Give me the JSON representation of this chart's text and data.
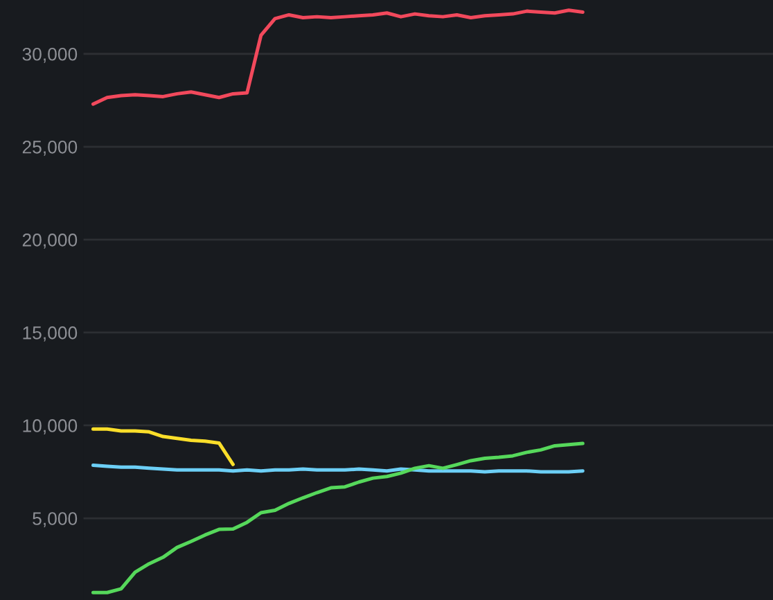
{
  "chart_data": {
    "type": "line",
    "categories": [
      null,
      null,
      null,
      null,
      null,
      null,
      null,
      null,
      null,
      null,
      null,
      null,
      null,
      null,
      null,
      null,
      null,
      null,
      null,
      null,
      null,
      null,
      null,
      null,
      null,
      null,
      null,
      null,
      null,
      null,
      null,
      null,
      null,
      null,
      null,
      null
    ],
    "series": [
      {
        "color": "#f2495c",
        "values": [
          27300,
          27650,
          27750,
          27800,
          27750,
          27700,
          27850,
          27950,
          27800,
          27650,
          27850,
          27900,
          31000,
          31900,
          32100,
          31950,
          32000,
          31950,
          32000,
          32050,
          32100,
          32200,
          32000,
          32150,
          32050,
          32000,
          32100,
          31950,
          32050,
          32100,
          32150,
          32300,
          32250,
          32200,
          32350,
          32250
        ]
      },
      {
        "color": "#fade2a",
        "values": [
          9800,
          9800,
          9700,
          9700,
          9650,
          9400,
          9300,
          9200,
          9150,
          9050,
          7900,
          null,
          null,
          null,
          null,
          null,
          null,
          null,
          null,
          null,
          null,
          null,
          null,
          null,
          null,
          null,
          null,
          null,
          null,
          null,
          null,
          null,
          null,
          null,
          null,
          null
        ]
      },
      {
        "color": "#6ccff6",
        "values": [
          7850,
          7800,
          7750,
          7750,
          7700,
          7650,
          7600,
          7600,
          7600,
          7600,
          7550,
          7600,
          7550,
          7600,
          7600,
          7650,
          7600,
          7600,
          7600,
          7650,
          7600,
          7550,
          7650,
          7600,
          7550,
          7550,
          7550,
          7550,
          7500,
          7550,
          7550,
          7550,
          7500,
          7500,
          7500,
          7550
        ]
      },
      {
        "color": "#56d85b",
        "values": [
          1000,
          1000,
          1200,
          2100,
          2550,
          2900,
          3430,
          3750,
          4100,
          4400,
          4420,
          4780,
          5300,
          5430,
          5800,
          6100,
          6380,
          6640,
          6690,
          6950,
          7160,
          7250,
          7430,
          7690,
          7830,
          7690,
          7890,
          8100,
          8230,
          8280,
          8360,
          8550,
          8680,
          8900,
          8960,
          9030
        ]
      }
    ],
    "ylim": [
      600,
      32900
    ],
    "yticks": [
      {
        "value": 5000,
        "label": "5,000"
      },
      {
        "value": 10000,
        "label": "10,000"
      },
      {
        "value": 15000,
        "label": "15,000"
      },
      {
        "value": 20000,
        "label": "20,000"
      },
      {
        "value": 25000,
        "label": "25,000"
      },
      {
        "value": 30000,
        "label": "30,000"
      }
    ],
    "grid": "y",
    "tick_labels": "y",
    "marker": "none",
    "line_style": "solid"
  }
}
